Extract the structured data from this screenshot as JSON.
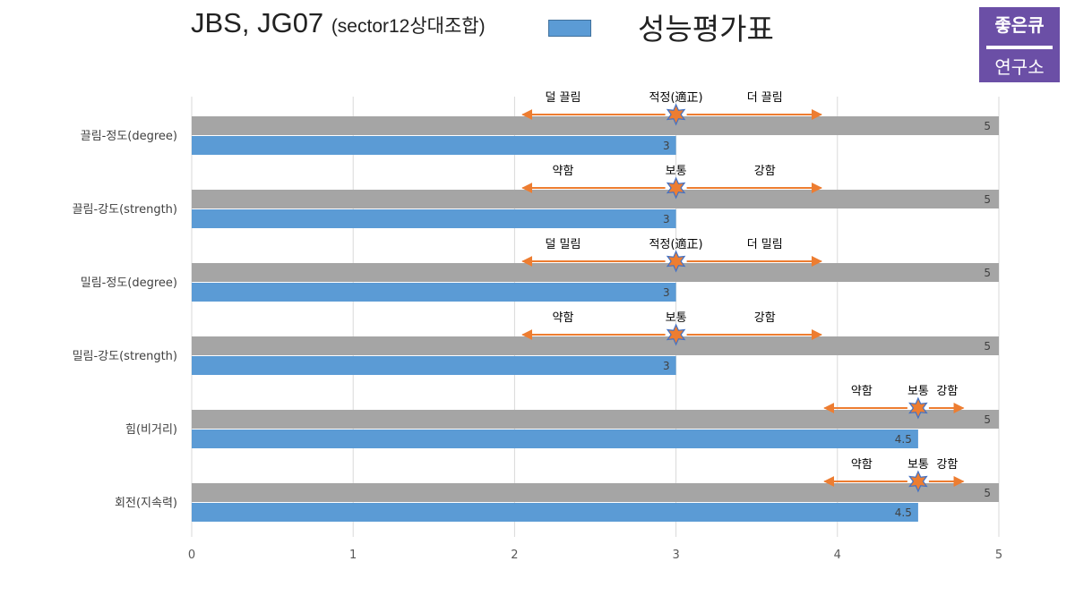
{
  "header": {
    "title": "JBS, JG07",
    "subtitle": "(sector12상대조합)",
    "legend_label": "성능평가표",
    "logo_line1": "좋은큐",
    "logo_line2": "연구소"
  },
  "colors": {
    "max_bar": "#a5a5a5",
    "value_bar": "#5b9bd5",
    "arrow": "#ed7d31",
    "star_fill": "#ed7d31",
    "star_stroke": "#4472c4",
    "grid": "#d9d9d9",
    "logo_bg": "#6b4fa6"
  },
  "chart_data": {
    "type": "bar",
    "orientation": "horizontal",
    "categories": [
      "끌림-정도(degree)",
      "끌림-강도(strength)",
      "밀림-정도(degree)",
      "밀림-강도(strength)",
      "힘(비거리)",
      "회전(지속력)"
    ],
    "series": [
      {
        "values": [
          5,
          5,
          5,
          5,
          5,
          5
        ]
      },
      {
        "name": "성능평가표",
        "values": [
          3,
          3,
          3,
          3,
          4.5,
          4.5
        ]
      }
    ],
    "xlim": [
      0,
      5
    ],
    "xticks": [
      "0",
      "1",
      "2",
      "3",
      "4",
      "5"
    ],
    "grid": true,
    "legend": "top",
    "annotations": [
      {
        "low": "덜 끌림",
        "mid": "적정(適正)",
        "high": "더 끌림",
        "marker": 3
      },
      {
        "low": "약함",
        "mid": "보통",
        "high": "강함",
        "marker": 3
      },
      {
        "low": "덜 밀림",
        "mid": "적정(適正)",
        "high": "더 밀림",
        "marker": 3
      },
      {
        "low": "약함",
        "mid": "보통",
        "high": "강함",
        "marker": 3
      },
      {
        "low": "약함",
        "mid": "보통",
        "high": "강함",
        "marker": 4.5
      },
      {
        "low": "약함",
        "mid": "보통",
        "high": "강함",
        "marker": 4.5
      }
    ]
  }
}
